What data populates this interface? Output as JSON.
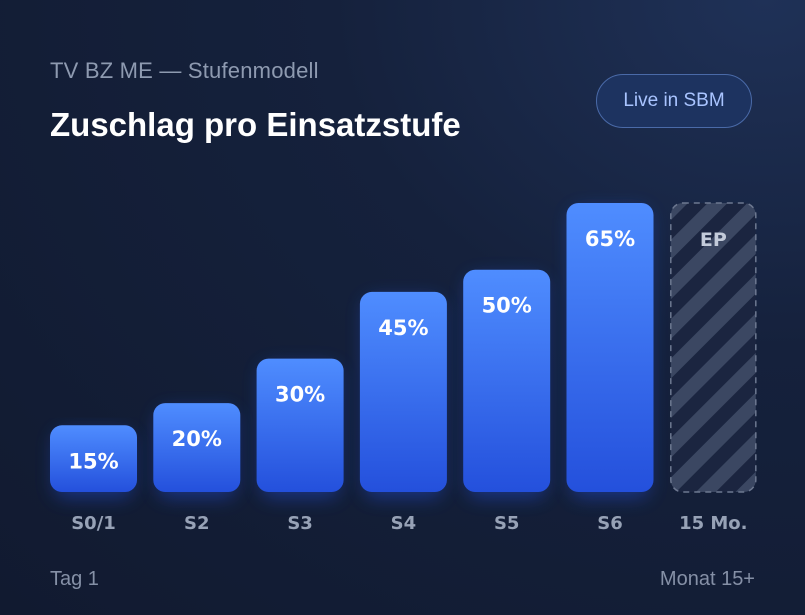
{
  "header": {
    "subtitle": "TV BZ ME — Stufenmodell",
    "title": "Zuschlag pro Einsatzstufe",
    "badge": "Live in SBM"
  },
  "footer": {
    "left": "Tag 1",
    "right": "Monat 15+"
  },
  "colors": {
    "bar_top": "#4f8dff",
    "bar_bottom": "#2450dc",
    "placeholder_stripe": "#3b4762",
    "placeholder_border": "#6d7890"
  },
  "chart_data": {
    "type": "bar",
    "categories": [
      "S0/1",
      "S2",
      "S3",
      "S4",
      "S5",
      "S6",
      "15 Mo."
    ],
    "values": [
      15,
      20,
      30,
      45,
      50,
      65,
      null
    ],
    "value_labels": [
      "15%",
      "20%",
      "30%",
      "45%",
      "50%",
      "65%",
      "EP"
    ],
    "ylim": [
      0,
      65
    ],
    "grid": false,
    "placeholder_category": "15 Mo.",
    "placeholder_label": "EP"
  }
}
